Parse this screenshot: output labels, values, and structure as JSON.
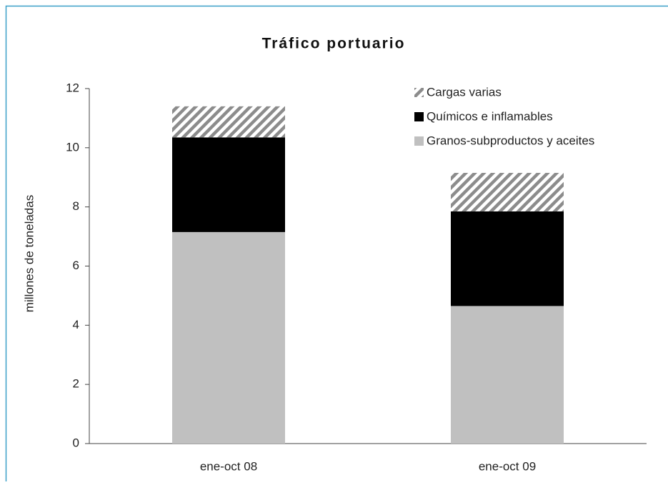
{
  "chart_data": {
    "type": "stacked_bar",
    "title": "Tráfico portuario",
    "y_label": "millones de toneladas",
    "categories": [
      "ene-oct 08",
      "ene-oct 09"
    ],
    "series": [
      {
        "name": "Granos-subproductos y aceites",
        "color": "#c0c0c0",
        "hatch": false,
        "values": [
          7.15,
          4.65
        ]
      },
      {
        "name": "Químicos e inflamables",
        "color": "#000000",
        "hatch": false,
        "values": [
          3.2,
          3.2
        ]
      },
      {
        "name": "Cargas varias",
        "color": "#8c8c8c",
        "hatch": true,
        "values": [
          1.05,
          1.3
        ]
      }
    ],
    "ylim": [
      0,
      12
    ],
    "yticks": [
      0,
      2,
      4,
      6,
      8,
      10,
      12
    ],
    "grid": false,
    "legend": "top-right"
  }
}
